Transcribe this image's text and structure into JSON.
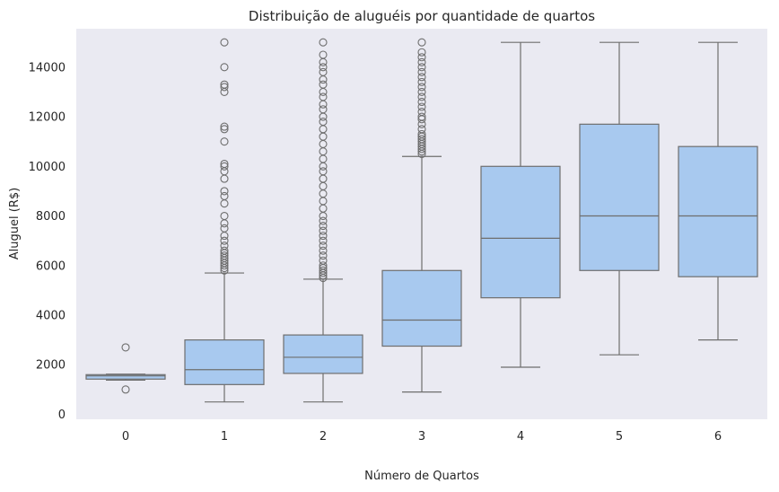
{
  "chart_data": {
    "type": "box",
    "title": "Distribuição de aluguéis por quantidade de quartos",
    "xlabel": "Número de Quartos",
    "ylabel": "Aluguel (R$)",
    "categories": [
      "0",
      "1",
      "2",
      "3",
      "4",
      "5",
      "6"
    ],
    "ylim": [
      -200,
      15550
    ],
    "yticks": [
      "0",
      "2000",
      "4000",
      "6000",
      "8000",
      "10000",
      "12000",
      "14000"
    ],
    "grid": false,
    "colors": {
      "box_fill": "#a8c9ef",
      "line": "#6e6e6e",
      "plot_bg": "#eaeaf2"
    },
    "boxes": [
      {
        "category": "0",
        "min": 1380,
        "q1": 1420,
        "median": 1550,
        "q3": 1600,
        "max": 1620,
        "outliers": [
          1000,
          2700
        ]
      },
      {
        "category": "1",
        "min": 500,
        "q1": 1200,
        "median": 1800,
        "q3": 3000,
        "max": 5700,
        "outliers": [
          5800,
          5900,
          6000,
          6100,
          6200,
          6300,
          6400,
          6500,
          6600,
          6800,
          7000,
          7200,
          7500,
          7700,
          8000,
          8500,
          8800,
          9000,
          9500,
          9800,
          10000,
          10100,
          11000,
          11500,
          11600,
          13000,
          13200,
          13300,
          14000,
          15000
        ]
      },
      {
        "category": "2",
        "min": 500,
        "q1": 1650,
        "median": 2300,
        "q3": 3200,
        "max": 5450,
        "outliers": [
          5500,
          5600,
          5700,
          5800,
          5900,
          6000,
          6200,
          6400,
          6600,
          6800,
          7000,
          7200,
          7400,
          7600,
          7800,
          8000,
          8300,
          8600,
          8900,
          9200,
          9500,
          9800,
          10000,
          10300,
          10600,
          10900,
          11200,
          11500,
          11800,
          12000,
          12300,
          12500,
          12800,
          13000,
          13300,
          13500,
          13800,
          14000,
          14200,
          14500,
          15000
        ]
      },
      {
        "category": "3",
        "min": 900,
        "q1": 2750,
        "median": 3800,
        "q3": 5800,
        "max": 10400,
        "outliers": [
          10500,
          10600,
          10700,
          10800,
          10900,
          11000,
          11100,
          11200,
          11300,
          11500,
          11700,
          11900,
          12000,
          12200,
          12400,
          12600,
          12800,
          13000,
          13200,
          13400,
          13600,
          13800,
          14000,
          14200,
          14400,
          14600,
          15000
        ]
      },
      {
        "category": "4",
        "min": 1900,
        "q1": 4700,
        "median": 7100,
        "q3": 10000,
        "max": 15000,
        "outliers": []
      },
      {
        "category": "5",
        "min": 2400,
        "q1": 5800,
        "median": 8000,
        "q3": 11700,
        "max": 15000,
        "outliers": []
      },
      {
        "category": "6",
        "min": 3000,
        "q1": 5550,
        "median": 8000,
        "q3": 10800,
        "max": 15000,
        "outliers": []
      }
    ]
  }
}
